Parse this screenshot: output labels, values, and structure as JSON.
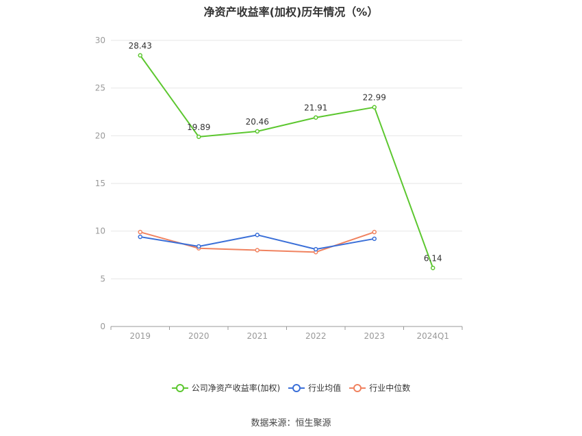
{
  "chart_data": {
    "type": "line",
    "title": "净资产收益率(加权)历年情况（%）",
    "categories": [
      "2019",
      "2020",
      "2021",
      "2022",
      "2023",
      "2024Q1"
    ],
    "ylim": [
      0,
      30
    ],
    "yticks": [
      0,
      5,
      10,
      15,
      20,
      25,
      30
    ],
    "grid": true,
    "legend_position": "bottom",
    "series": [
      {
        "name": "公司净资产收益率(加权)",
        "color": "#5cc72f",
        "values": [
          28.43,
          19.89,
          20.46,
          21.91,
          22.99,
          6.14
        ],
        "show_labels": true
      },
      {
        "name": "行业均值",
        "color": "#3a6fd8",
        "values": [
          9.4,
          8.4,
          9.6,
          8.1,
          9.2,
          null
        ],
        "show_labels": false
      },
      {
        "name": "行业中位数",
        "color": "#f0825f",
        "values": [
          9.9,
          8.2,
          8.0,
          7.8,
          9.9,
          null
        ],
        "show_labels": false
      }
    ]
  },
  "source": "数据来源：恒生聚源"
}
